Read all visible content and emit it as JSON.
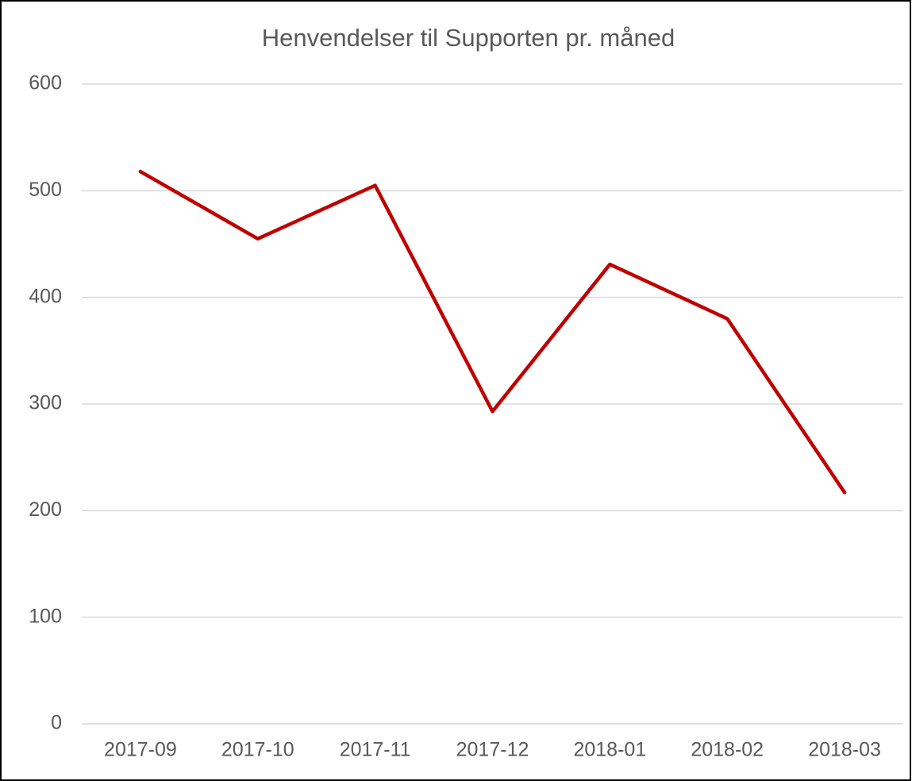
{
  "chart_data": {
    "type": "line",
    "title": "Henvendelser til Supporten pr. måned",
    "categories": [
      "2017-09",
      "2017-10",
      "2017-11",
      "2017-12",
      "2018-01",
      "2018-02",
      "2018-03"
    ],
    "values": [
      518,
      455,
      505,
      293,
      431,
      380,
      217
    ],
    "color": "#c00000",
    "ylim": [
      0,
      600
    ],
    "yticks": [
      0,
      100,
      200,
      300,
      400,
      500,
      600
    ],
    "grid": true
  }
}
